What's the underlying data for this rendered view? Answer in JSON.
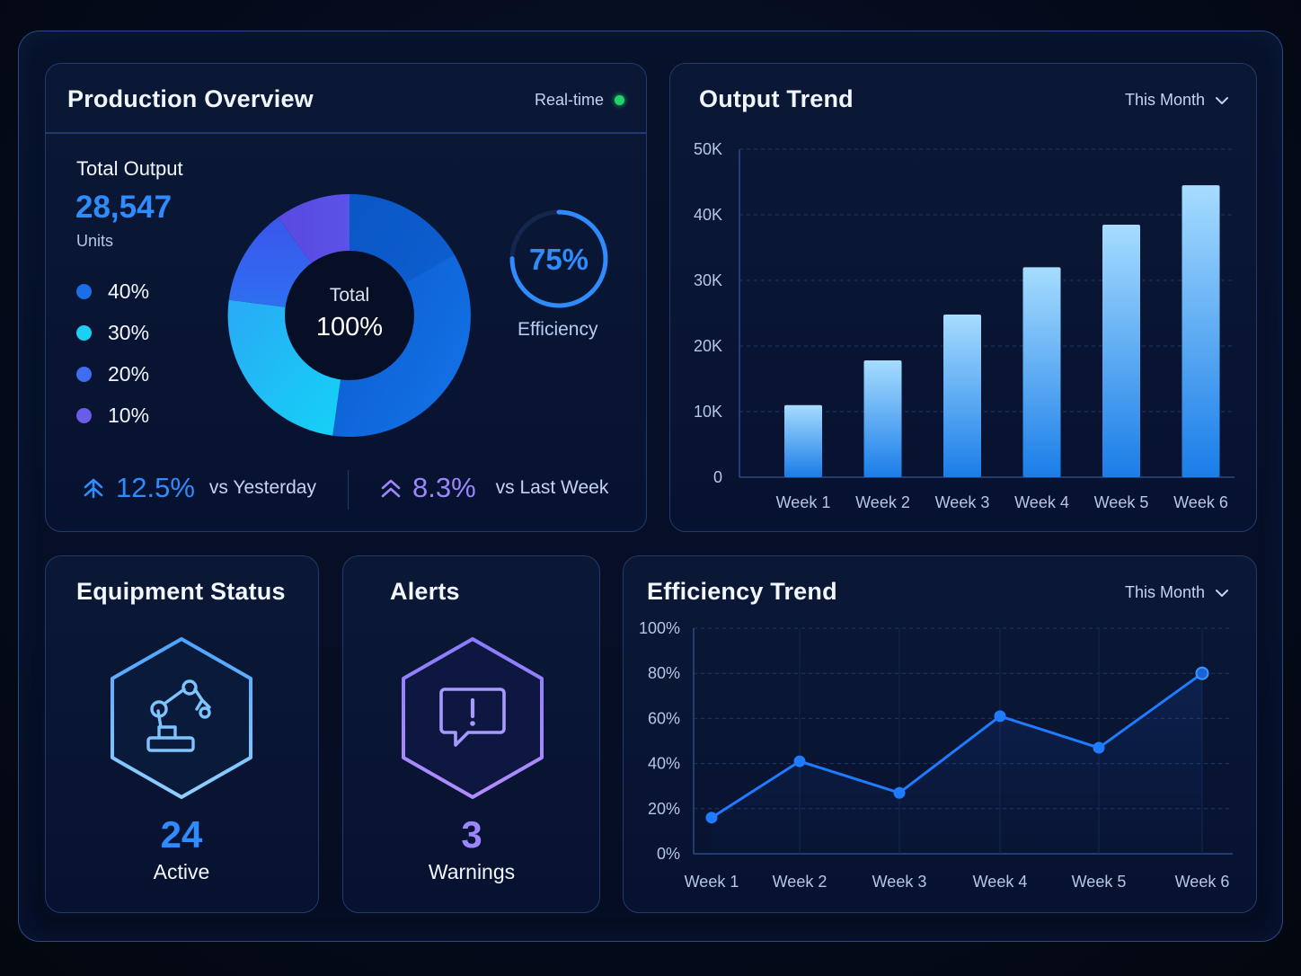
{
  "colors": {
    "accent_blue": "#2f8cff",
    "accent_purple": "#9c86ff",
    "status_green": "#22d36b",
    "donut_blue": "#0f6be0",
    "donut_cyan": "#19c6f2",
    "donut_mid": "#3566ef",
    "donut_purple": "#5b50e6"
  },
  "production": {
    "title": "Production Overview",
    "status_label": "Real-time",
    "total_label": "Total Output",
    "total_value": "28,547",
    "unit": "Units",
    "legend": [
      {
        "label": "40%",
        "color": "#1a6fe6"
      },
      {
        "label": "30%",
        "color": "#1bd0f4"
      },
      {
        "label": "20%",
        "color": "#3f6df0"
      },
      {
        "label": "10%",
        "color": "#6b5ce8"
      }
    ],
    "donut_center_label": "Total",
    "donut_center_value": "100%",
    "efficiency_value": "75%",
    "efficiency_fraction": 0.75,
    "efficiency_label": "Efficiency",
    "change_yesterday": "12.5%",
    "change_yesterday_label": "vs Yesterday",
    "change_week": "8.3%",
    "change_week_label": "vs Last Week"
  },
  "output_trend": {
    "title": "Output Trend",
    "range_label": "This Month",
    "chart_data": {
      "type": "bar",
      "categories": [
        "Week 1",
        "Week 2",
        "Week 3",
        "Week 4",
        "Week 5",
        "Week 6"
      ],
      "values": [
        11000,
        17800,
        24800,
        32000,
        38500,
        44500
      ],
      "yticks": [
        "0",
        "10K",
        "20K",
        "30K",
        "40K",
        "50K"
      ],
      "ylim": [
        0,
        50000
      ],
      "grid": true
    }
  },
  "equipment": {
    "title": "Equipment Status",
    "icon": "robot-arm-icon",
    "count": "24",
    "status_label": "Active"
  },
  "alerts": {
    "title": "Alerts",
    "icon": "alert-message-icon",
    "count": "3",
    "status_label": "Warnings"
  },
  "efficiency_trend": {
    "title": "Efficiency Trend",
    "range_label": "This Month",
    "chart_data": {
      "type": "line",
      "categories": [
        "Week 1",
        "Week 2",
        "Week 3",
        "Week 4",
        "Week 5",
        "Week 6"
      ],
      "values": [
        16,
        41,
        27,
        61,
        47,
        80
      ],
      "yticks": [
        "0%",
        "20%",
        "40%",
        "60%",
        "80%",
        "100%"
      ],
      "ylim": [
        0,
        100
      ],
      "grid": true
    }
  }
}
